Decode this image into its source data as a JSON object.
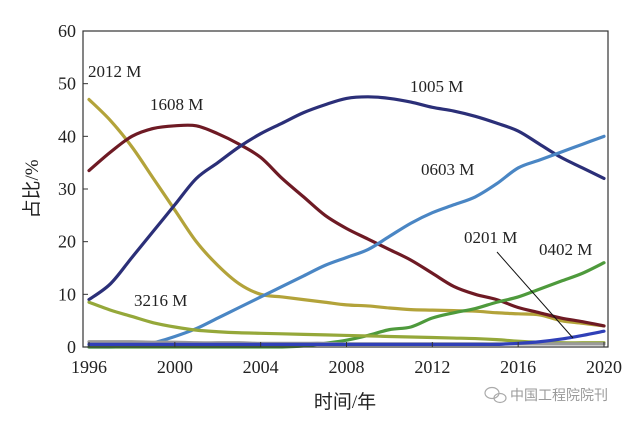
{
  "chart_data": {
    "type": "line",
    "title": "",
    "xlabel": "时间/年",
    "ylabel": "占比/%",
    "xlim": [
      1996,
      2020
    ],
    "ylim": [
      0,
      60
    ],
    "xticks": [
      1996,
      2000,
      2004,
      2008,
      2012,
      2016,
      2020
    ],
    "yticks": [
      0,
      10,
      20,
      30,
      40,
      50,
      60
    ],
    "grid": false,
    "legend": "none (direct labels on lines)",
    "x": [
      1996,
      1997,
      1998,
      1999,
      2000,
      2001,
      2002,
      2003,
      2004,
      2005,
      2006,
      2007,
      2008,
      2009,
      2010,
      2011,
      2012,
      2013,
      2014,
      2015,
      2016,
      2017,
      2018,
      2019,
      2020
    ],
    "series": [
      {
        "name": "2012 M",
        "color": "#b3a33a",
        "values": [
          47,
          43,
          38,
          32,
          26,
          20,
          15.5,
          12,
          10,
          9.5,
          9,
          8.5,
          8,
          7.8,
          7.4,
          7.1,
          7,
          6.9,
          6.8,
          6.5,
          6.3,
          6.1,
          5,
          4.5,
          4
        ]
      },
      {
        "name": "1608 M",
        "color": "#6e1a24",
        "values": [
          33.5,
          37,
          40,
          41.5,
          42,
          42,
          40.5,
          38.5,
          36,
          32,
          28.5,
          25,
          22.5,
          20.5,
          18.5,
          16.5,
          14,
          11.5,
          10,
          9,
          7.5,
          6.5,
          5.5,
          4.8,
          4
        ]
      },
      {
        "name": "1005 M",
        "color": "#2b2f78",
        "values": [
          9,
          12,
          17,
          22,
          27,
          32,
          35,
          38,
          40.5,
          42.5,
          44.5,
          46,
          47.2,
          47.5,
          47.2,
          46.5,
          45.5,
          44.8,
          43.8,
          42.5,
          41,
          38.5,
          36,
          34,
          32
        ]
      },
      {
        "name": "0603 M",
        "color": "#4a86c4",
        "values": [
          0,
          0,
          0.2,
          0.8,
          2,
          3.5,
          5.5,
          7.5,
          9.5,
          11.5,
          13.5,
          15.5,
          17,
          18.5,
          21,
          23.5,
          25.5,
          27,
          28.5,
          31,
          34,
          35.5,
          37,
          38.5,
          40
        ]
      },
      {
        "name": "0402 M",
        "color": "#4e9a3c",
        "values": [
          0,
          0,
          0,
          0,
          0,
          0,
          0,
          0,
          0,
          0,
          0.2,
          0.7,
          1.3,
          2.2,
          3.3,
          3.8,
          5.5,
          6.5,
          7.3,
          8.5,
          9.5,
          11,
          12.5,
          14,
          16
        ]
      },
      {
        "name": "3216 M",
        "color": "#95a83a",
        "values": [
          8.5,
          7,
          5.8,
          4.6,
          3.8,
          3.2,
          2.9,
          2.7,
          2.6,
          2.5,
          2.4,
          2.3,
          2.2,
          2.1,
          2,
          1.9,
          1.8,
          1.7,
          1.6,
          1.4,
          1.1,
          0.9,
          0.8,
          0.8,
          0.8
        ]
      },
      {
        "color": "#9a9a9a",
        "values": [
          1,
          1,
          1,
          0.9,
          0.9,
          0.8,
          0.8,
          0.8,
          0.7,
          0.7,
          0.7,
          0.7,
          0.6,
          0.6,
          0.6,
          0.6,
          0.6,
          0.6,
          0.6,
          0.6,
          0.6,
          0.6,
          0.6,
          0.6,
          0.6
        ]
      },
      {
        "name": "0201 M",
        "color": "#3040b8",
        "values": [
          0.5,
          0.5,
          0.5,
          0.5,
          0.5,
          0.5,
          0.5,
          0.5,
          0.5,
          0.5,
          0.5,
          0.5,
          0.5,
          0.5,
          0.5,
          0.5,
          0.5,
          0.5,
          0.5,
          0.5,
          0.7,
          1,
          1.5,
          2.2,
          3
        ]
      }
    ]
  },
  "watermark": {
    "icon": "wechat-icon",
    "text": "中国工程院院刊"
  }
}
